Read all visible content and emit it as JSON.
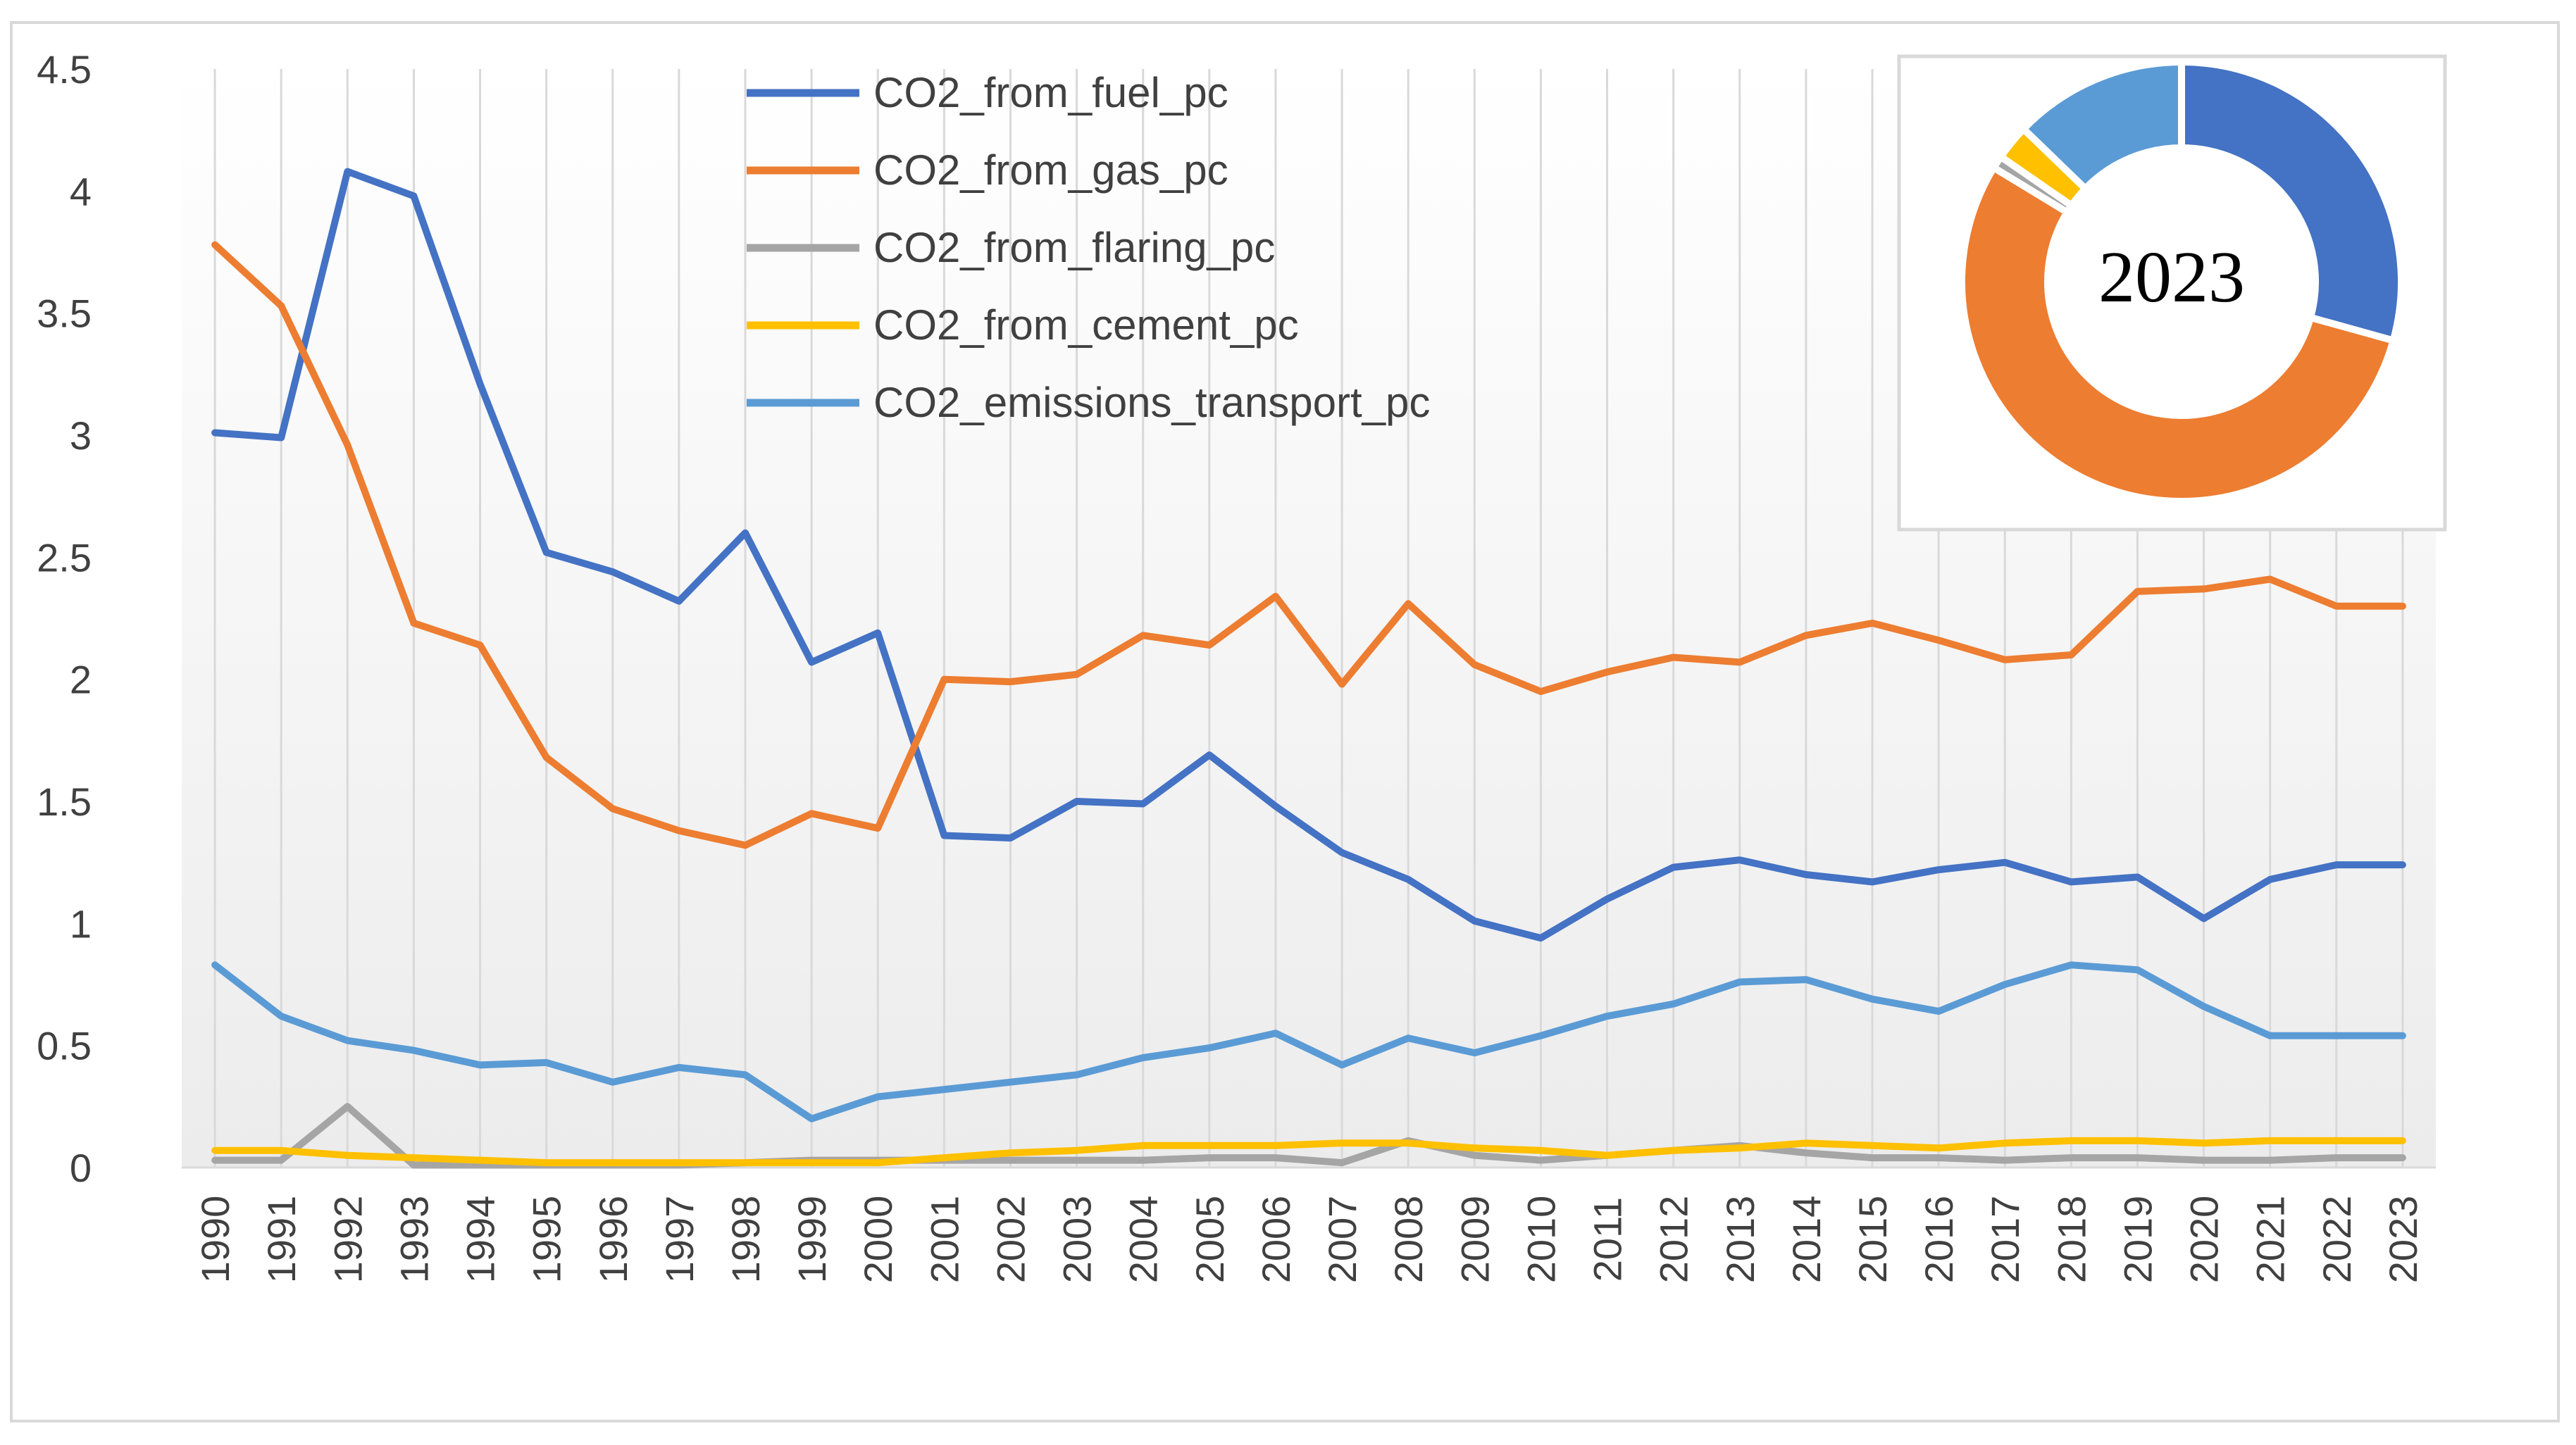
{
  "chart_data": [
    {
      "type": "line",
      "title": "",
      "xlabel": "",
      "ylabel": "",
      "ylim": [
        0,
        4.5
      ],
      "yticks": [
        "0",
        "0.5",
        "1",
        "1.5",
        "2",
        "2.5",
        "3",
        "3.5",
        "4",
        "4.5"
      ],
      "vertical_gridlines": true,
      "legend_position": "top-center",
      "categories": [
        "1990",
        "1991",
        "1992",
        "1993",
        "1994",
        "1995",
        "1996",
        "1997",
        "1998",
        "1999",
        "2000",
        "2001",
        "2002",
        "2003",
        "2004",
        "2005",
        "2006",
        "2007",
        "2008",
        "2009",
        "2010",
        "2011",
        "2012",
        "2013",
        "2014",
        "2015",
        "2016",
        "2017",
        "2018",
        "2019",
        "2020",
        "2021",
        "2022",
        "2023"
      ],
      "series": [
        {
          "name": "CO2_from_fuel_pc",
          "color": "#4472c4",
          "values": [
            3.01,
            2.99,
            4.08,
            3.98,
            3.21,
            2.52,
            2.44,
            2.32,
            2.6,
            2.07,
            2.19,
            1.36,
            1.35,
            1.5,
            1.49,
            1.69,
            1.48,
            1.29,
            1.18,
            1.01,
            0.94,
            1.1,
            1.23,
            1.26,
            1.2,
            1.17,
            1.22,
            1.25,
            1.17,
            1.19,
            1.02,
            1.18,
            1.24,
            1.24
          ]
        },
        {
          "name": "CO2_from_gas_pc",
          "color": "#ed7d31",
          "values": [
            3.78,
            3.53,
            2.96,
            2.23,
            2.14,
            1.68,
            1.47,
            1.38,
            1.32,
            1.45,
            1.39,
            2.0,
            1.99,
            2.02,
            2.18,
            2.14,
            2.34,
            1.98,
            2.31,
            2.06,
            1.95,
            2.03,
            2.09,
            2.07,
            2.18,
            2.23,
            2.16,
            2.08,
            2.1,
            2.36,
            2.37,
            2.41,
            2.3,
            2.3
          ]
        },
        {
          "name": "CO2_from_flaring_pc",
          "color": "#a5a5a5",
          "values": [
            0.03,
            0.03,
            0.25,
            0.01,
            0.01,
            0.01,
            0.01,
            0.01,
            0.02,
            0.03,
            0.03,
            0.03,
            0.03,
            0.03,
            0.03,
            0.04,
            0.04,
            0.02,
            0.11,
            0.05,
            0.03,
            0.05,
            0.07,
            0.09,
            0.06,
            0.04,
            0.04,
            0.03,
            0.04,
            0.04,
            0.03,
            0.03,
            0.04,
            0.04
          ]
        },
        {
          "name": "CO2_from_cement_pc",
          "color": "#ffc000",
          "values": [
            0.07,
            0.07,
            0.05,
            0.04,
            0.03,
            0.02,
            0.02,
            0.02,
            0.02,
            0.02,
            0.02,
            0.04,
            0.06,
            0.07,
            0.09,
            0.09,
            0.09,
            0.1,
            0.1,
            0.08,
            0.07,
            0.05,
            0.07,
            0.08,
            0.1,
            0.09,
            0.08,
            0.1,
            0.11,
            0.11,
            0.1,
            0.11,
            0.11,
            0.11
          ]
        },
        {
          "name": "CO2_emissions_transport_pc",
          "color": "#5b9bd5",
          "values": [
            0.83,
            0.62,
            0.52,
            0.48,
            0.42,
            0.43,
            0.35,
            0.41,
            0.38,
            0.2,
            0.29,
            0.32,
            0.35,
            0.38,
            0.45,
            0.49,
            0.55,
            0.42,
            0.53,
            0.47,
            0.54,
            0.62,
            0.67,
            0.76,
            0.77,
            0.69,
            0.64,
            0.75,
            0.83,
            0.81,
            0.66,
            0.54,
            0.54,
            0.54
          ]
        }
      ]
    },
    {
      "type": "pie",
      "variant": "donut",
      "title": "2023",
      "slices": [
        {
          "name": "CO2_from_fuel_pc",
          "value": 1.24,
          "color": "#4472c4"
        },
        {
          "name": "CO2_from_gas_pc",
          "value": 2.3,
          "color": "#ed7d31"
        },
        {
          "name": "CO2_from_flaring_pc",
          "value": 0.04,
          "color": "#a5a5a5"
        },
        {
          "name": "CO2_from_cement_pc",
          "value": 0.11,
          "color": "#ffc000"
        },
        {
          "name": "CO2_emissions_transport_pc",
          "value": 0.54,
          "color": "#5b9bd5"
        }
      ]
    }
  ]
}
